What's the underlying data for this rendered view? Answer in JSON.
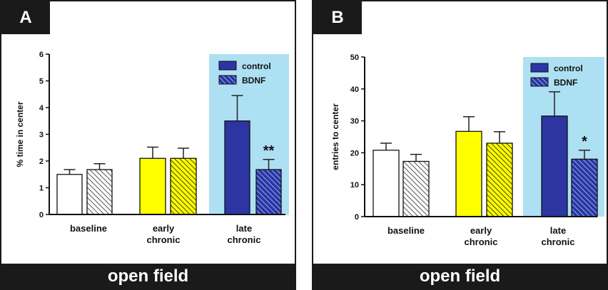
{
  "panels": [
    {
      "letter": "A",
      "footer": "open field"
    },
    {
      "letter": "B",
      "footer": "open field"
    }
  ],
  "colors": {
    "control_late": "#2c35a2",
    "early": "#ffff00",
    "baseline": "#ffffff",
    "highlight": "#aee0f3",
    "frame": "#1a1a1a"
  },
  "chart_data": [
    {
      "type": "bar",
      "title": "",
      "xlabel": "",
      "ylabel": "% time in center",
      "ylim": [
        0,
        6
      ],
      "yticks": [
        0,
        1,
        2,
        3,
        4,
        5,
        6
      ],
      "categories": [
        "baseline",
        "early\nchronic",
        "late\nchronic"
      ],
      "legend": {
        "position": "top-right",
        "entries": [
          "control",
          "BDNF"
        ]
      },
      "series": [
        {
          "name": "control",
          "values": [
            1.5,
            2.1,
            3.5
          ],
          "errors": [
            0.18,
            0.42,
            0.95
          ]
        },
        {
          "name": "BDNF",
          "values": [
            1.68,
            2.1,
            1.68
          ],
          "errors": [
            0.22,
            0.38,
            0.38
          ]
        }
      ],
      "annotations": [
        {
          "category": 2,
          "series": 1,
          "text": "**"
        }
      ]
    },
    {
      "type": "bar",
      "title": "",
      "xlabel": "",
      "ylabel": "entries to center",
      "ylim": [
        0,
        50
      ],
      "yticks": [
        0,
        10,
        20,
        30,
        40,
        50
      ],
      "categories": [
        "baseline",
        "early\nchronic",
        "late\nchronic"
      ],
      "legend": {
        "position": "top-right",
        "entries": [
          "control",
          "BDNF"
        ]
      },
      "series": [
        {
          "name": "control",
          "values": [
            20.8,
            26.7,
            31.5
          ],
          "errors": [
            2.2,
            4.6,
            7.6
          ]
        },
        {
          "name": "BDNF",
          "values": [
            17.3,
            23.0,
            18.0
          ],
          "errors": [
            2.2,
            3.6,
            2.8
          ]
        }
      ],
      "annotations": [
        {
          "category": 2,
          "series": 1,
          "text": "*"
        }
      ]
    }
  ]
}
